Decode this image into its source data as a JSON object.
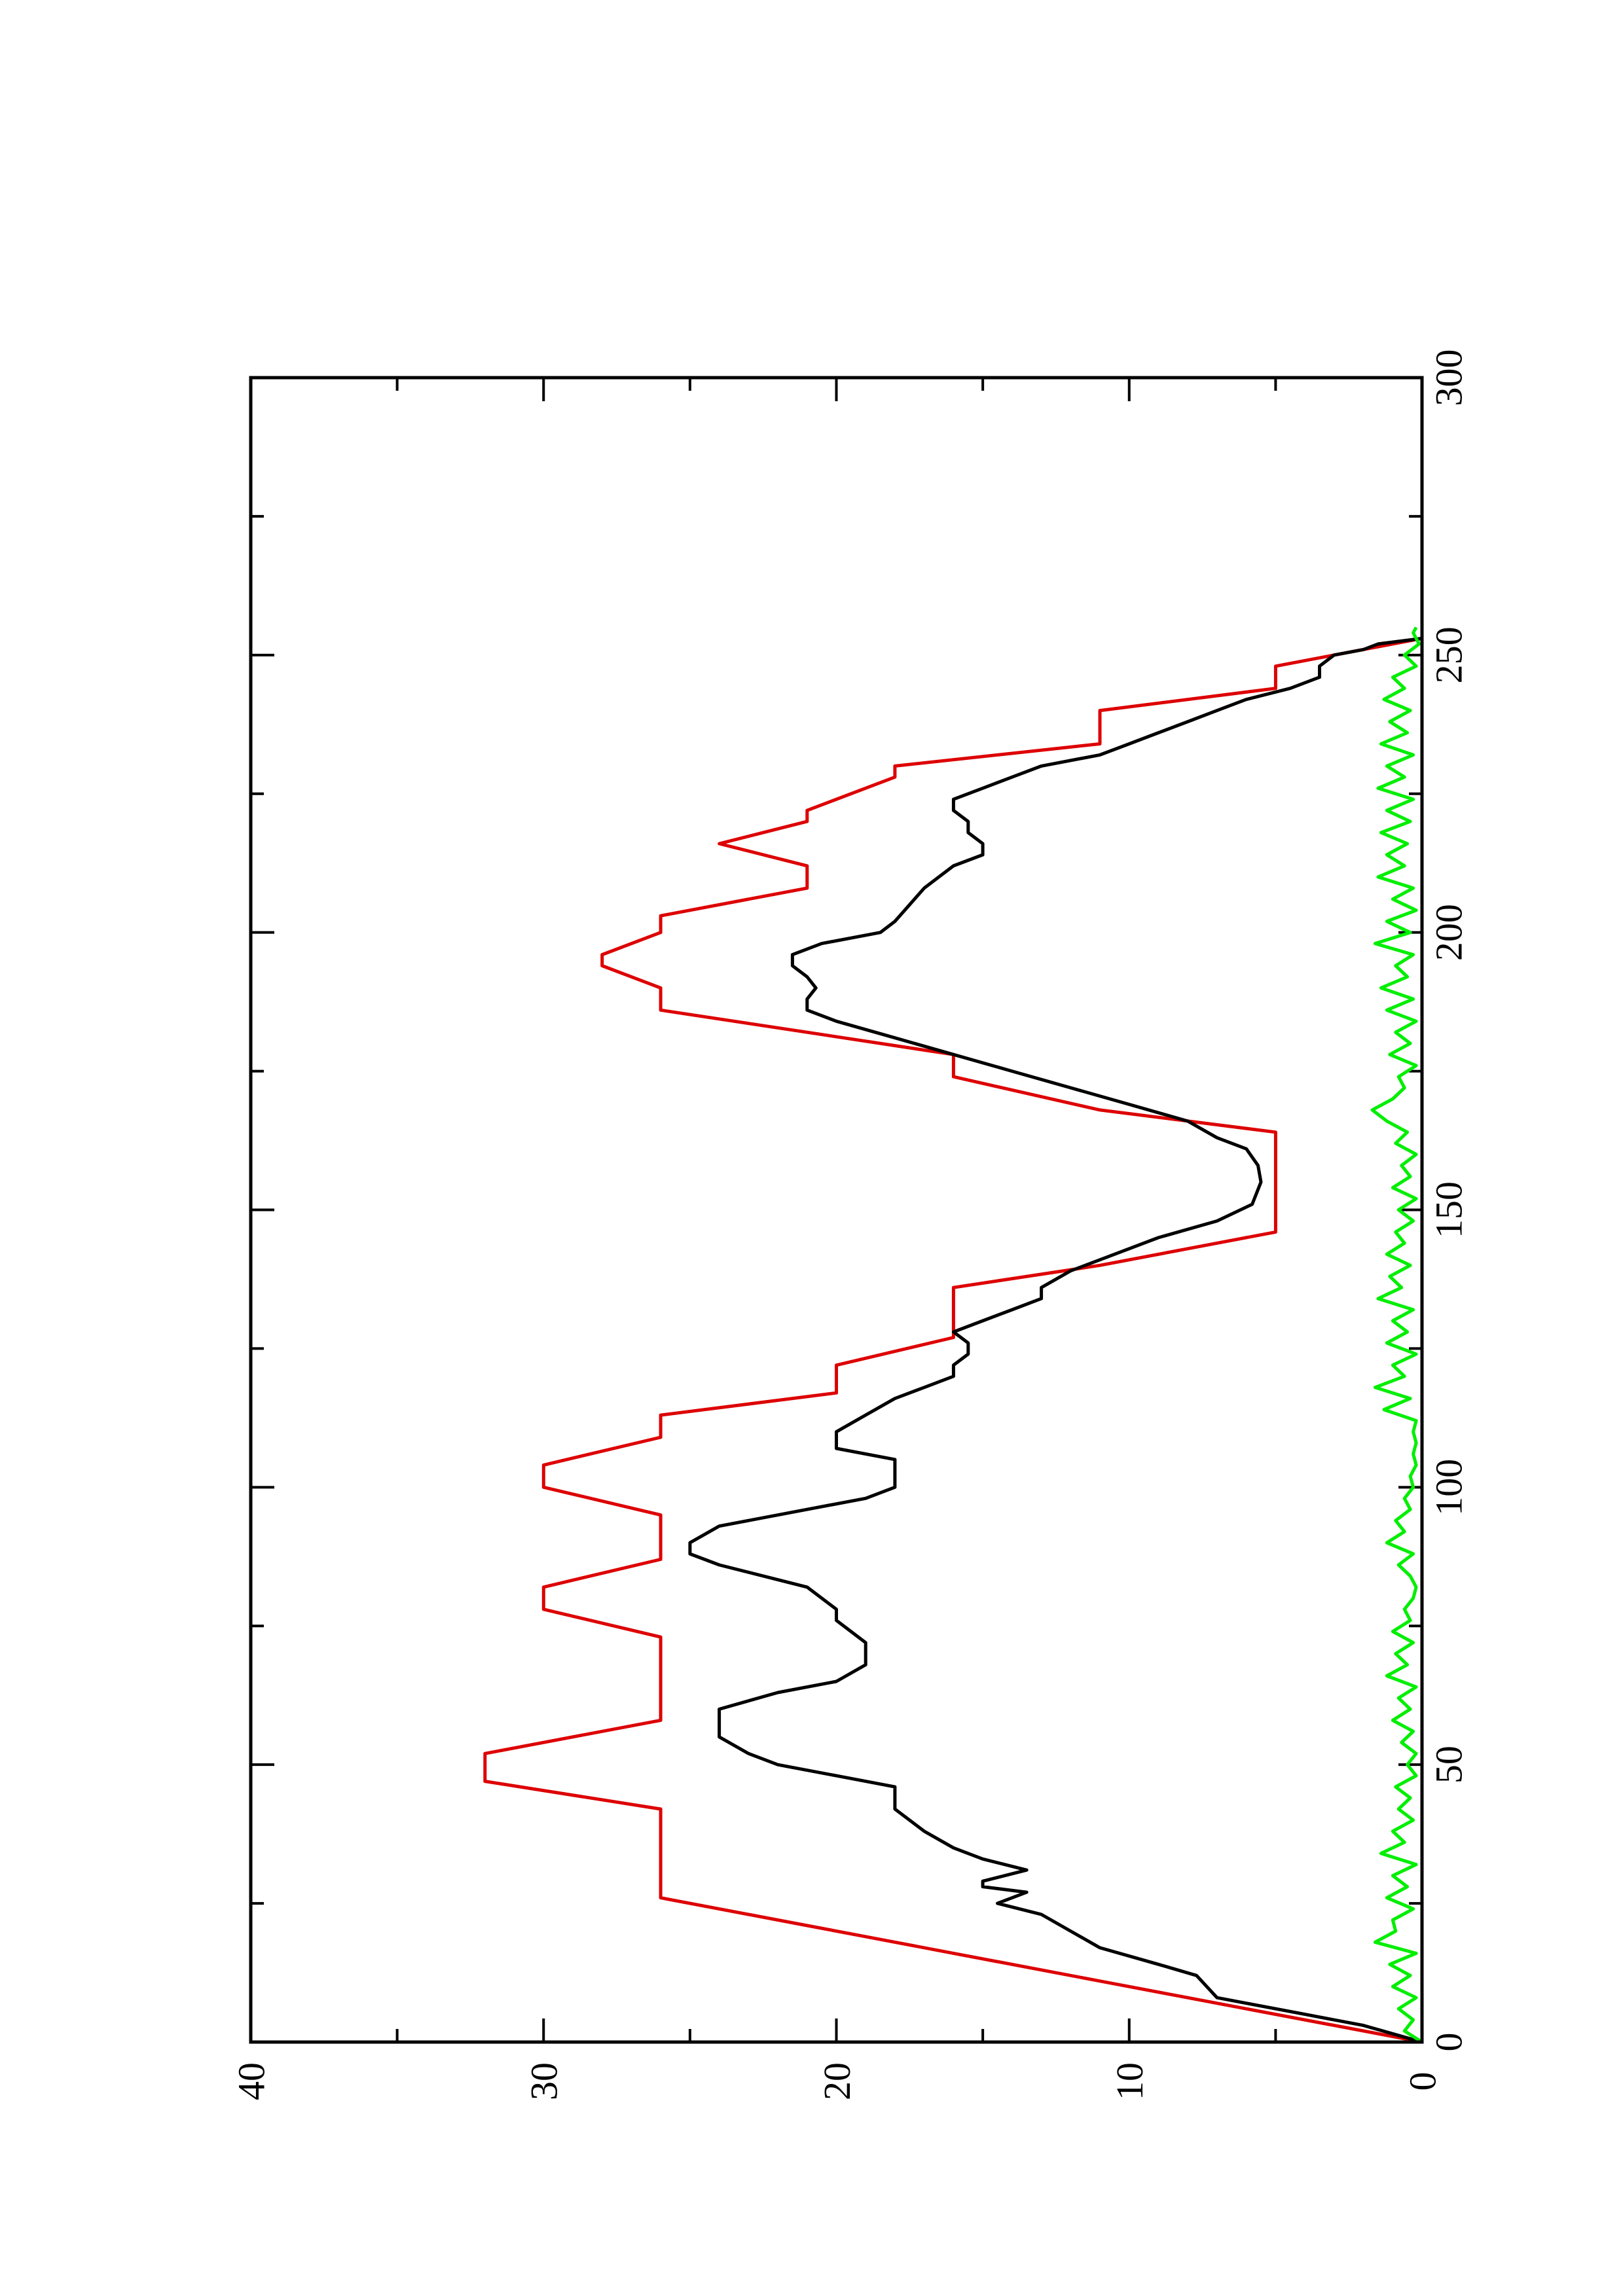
{
  "chart_data": {
    "type": "line",
    "title": "",
    "xlabel": "",
    "ylabel": "",
    "orientation": "rotated-90-ccw",
    "xlim": [
      0,
      300
    ],
    "ylim": [
      0,
      40
    ],
    "x_ticks": [
      0,
      50,
      100,
      150,
      200,
      250,
      300
    ],
    "x_minor_ticks": [
      25,
      75,
      125,
      175,
      225,
      275
    ],
    "y_ticks": [
      0,
      10,
      20,
      30,
      40
    ],
    "y_minor_ticks": [
      5,
      15,
      25,
      35
    ],
    "grid": false,
    "legend": "none",
    "series": [
      {
        "color": "#dd0000",
        "points": [
          [
            0,
            0
          ],
          [
            11,
            11
          ],
          [
            16,
            16
          ],
          [
            19,
            19
          ],
          [
            21,
            21
          ],
          [
            26,
            26
          ],
          [
            42,
            26
          ],
          [
            47,
            32
          ],
          [
            52,
            32
          ],
          [
            58,
            26
          ],
          [
            73,
            26
          ],
          [
            78,
            30
          ],
          [
            82,
            30
          ],
          [
            87,
            26
          ],
          [
            95,
            26
          ],
          [
            100,
            30
          ],
          [
            104,
            30
          ],
          [
            109,
            26
          ],
          [
            113,
            26
          ],
          [
            117,
            20
          ],
          [
            122,
            20
          ],
          [
            127,
            16
          ],
          [
            136,
            16
          ],
          [
            140,
            11
          ],
          [
            146,
            5
          ],
          [
            164,
            5
          ],
          [
            168,
            11
          ],
          [
            174,
            16
          ],
          [
            178,
            16
          ],
          [
            182,
            21
          ],
          [
            186,
            26
          ],
          [
            190,
            26
          ],
          [
            194,
            28
          ],
          [
            196,
            28
          ],
          [
            200,
            26
          ],
          [
            203,
            26
          ],
          [
            208,
            21
          ],
          [
            212,
            21
          ],
          [
            216,
            24
          ],
          [
            220,
            21
          ],
          [
            222,
            21
          ],
          [
            228,
            18
          ],
          [
            230,
            18
          ],
          [
            234,
            11
          ],
          [
            240,
            11
          ],
          [
            244,
            5
          ],
          [
            248,
            5
          ],
          [
            253,
            0
          ]
        ]
      },
      {
        "color": "#000000",
        "points": [
          [
            0,
            0
          ],
          [
            3,
            2
          ],
          [
            5,
            4
          ],
          [
            8,
            7
          ],
          [
            12,
            7.7
          ],
          [
            14,
            9
          ],
          [
            17,
            11
          ],
          [
            20,
            12
          ],
          [
            23,
            13
          ],
          [
            25,
            14.5
          ],
          [
            27,
            13.5
          ],
          [
            28,
            15
          ],
          [
            29,
            15
          ],
          [
            31,
            13.5
          ],
          [
            33,
            15
          ],
          [
            35,
            16
          ],
          [
            38,
            17
          ],
          [
            42,
            18
          ],
          [
            46,
            18
          ],
          [
            48,
            20
          ],
          [
            50,
            22
          ],
          [
            52,
            23
          ],
          [
            55,
            24
          ],
          [
            60,
            24
          ],
          [
            63,
            22
          ],
          [
            65,
            20
          ],
          [
            68,
            19
          ],
          [
            72,
            19
          ],
          [
            76,
            20
          ],
          [
            78,
            20
          ],
          [
            82,
            21
          ],
          [
            86,
            24
          ],
          [
            88,
            25
          ],
          [
            90,
            25
          ],
          [
            93,
            24
          ],
          [
            96,
            21
          ],
          [
            98,
            19
          ],
          [
            100,
            18
          ],
          [
            103,
            18
          ],
          [
            105,
            18
          ],
          [
            107,
            20
          ],
          [
            110,
            20
          ],
          [
            113,
            19
          ],
          [
            116,
            18
          ],
          [
            118,
            17
          ],
          [
            120,
            16
          ],
          [
            122,
            16
          ],
          [
            124,
            15.5
          ],
          [
            126,
            15.5
          ],
          [
            128,
            16
          ],
          [
            130,
            15
          ],
          [
            132,
            14
          ],
          [
            134,
            13
          ],
          [
            136,
            13
          ],
          [
            139,
            12
          ],
          [
            141,
            11
          ],
          [
            145,
            9
          ],
          [
            148,
            7
          ],
          [
            151,
            5.8
          ],
          [
            155,
            5.5
          ],
          [
            158,
            5.6
          ],
          [
            161,
            6
          ],
          [
            163,
            7
          ],
          [
            166,
            8
          ],
          [
            169,
            10
          ],
          [
            172,
            12
          ],
          [
            175,
            14
          ],
          [
            178,
            16
          ],
          [
            181,
            18
          ],
          [
            184,
            20
          ],
          [
            186,
            21
          ],
          [
            188,
            21
          ],
          [
            190,
            20.7
          ],
          [
            192,
            21
          ],
          [
            194,
            21.5
          ],
          [
            196,
            21.5
          ],
          [
            198,
            20.5
          ],
          [
            200,
            18.5
          ],
          [
            202,
            18
          ],
          [
            205,
            17.5
          ],
          [
            208,
            17
          ],
          [
            210,
            16.5
          ],
          [
            212,
            16
          ],
          [
            214,
            15
          ],
          [
            216,
            15
          ],
          [
            218,
            15.5
          ],
          [
            220,
            15.5
          ],
          [
            222,
            16
          ],
          [
            224,
            16
          ],
          [
            226,
            15
          ],
          [
            228,
            14
          ],
          [
            230,
            13
          ],
          [
            232,
            11
          ],
          [
            234,
            10
          ],
          [
            236,
            9
          ],
          [
            238,
            8
          ],
          [
            240,
            7
          ],
          [
            242,
            6
          ],
          [
            244,
            4.5
          ],
          [
            246,
            3.5
          ],
          [
            248,
            3.5
          ],
          [
            250,
            3
          ],
          [
            251,
            2
          ],
          [
            252,
            1.5
          ],
          [
            253,
            0
          ]
        ]
      },
      {
        "color": "#00ee00",
        "points": [
          [
            0,
            0
          ],
          [
            2,
            0.6
          ],
          [
            4,
            0.3
          ],
          [
            6,
            0.8
          ],
          [
            8,
            0.2
          ],
          [
            10,
            1.0
          ],
          [
            12,
            0.4
          ],
          [
            14,
            1.1
          ],
          [
            16,
            0.2
          ],
          [
            18,
            1.6
          ],
          [
            20,
            0.9
          ],
          [
            22,
            1.0
          ],
          [
            24,
            0.3
          ],
          [
            26,
            1.2
          ],
          [
            28,
            0.5
          ],
          [
            30,
            1.0
          ],
          [
            32,
            0.2
          ],
          [
            34,
            1.4
          ],
          [
            36,
            0.6
          ],
          [
            38,
            1.0
          ],
          [
            40,
            0.3
          ],
          [
            42,
            0.8
          ],
          [
            44,
            0.4
          ],
          [
            46,
            0.9
          ],
          [
            48,
            0.2
          ],
          [
            50,
            0.5
          ],
          [
            52,
            0.2
          ],
          [
            54,
            0.7
          ],
          [
            56,
            0.3
          ],
          [
            58,
            1.0
          ],
          [
            60,
            0.4
          ],
          [
            62,
            0.8
          ],
          [
            64,
            0.2
          ],
          [
            66,
            1.2
          ],
          [
            68,
            0.5
          ],
          [
            70,
            0.9
          ],
          [
            72,
            0.3
          ],
          [
            74,
            1.0
          ],
          [
            76,
            0.4
          ],
          [
            78,
            0.6
          ],
          [
            80,
            0.3
          ],
          [
            82,
            0.2
          ],
          [
            84,
            0.4
          ],
          [
            86,
            0.8
          ],
          [
            88,
            0.3
          ],
          [
            90,
            1.2
          ],
          [
            92,
            0.6
          ],
          [
            94,
            0.9
          ],
          [
            96,
            0.4
          ],
          [
            98,
            0.6
          ],
          [
            100,
            0.3
          ],
          [
            102,
            0.4
          ],
          [
            104,
            0.2
          ],
          [
            106,
            0.3
          ],
          [
            108,
            0.2
          ],
          [
            110,
            0.3
          ],
          [
            112,
            0.2
          ],
          [
            114,
            1.3
          ],
          [
            116,
            0.4
          ],
          [
            118,
            1.6
          ],
          [
            120,
            0.6
          ],
          [
            122,
            1.0
          ],
          [
            124,
            0.2
          ],
          [
            126,
            1.2
          ],
          [
            128,
            0.5
          ],
          [
            130,
            1.0
          ],
          [
            132,
            0.3
          ],
          [
            134,
            1.5
          ],
          [
            136,
            0.7
          ],
          [
            138,
            1.1
          ],
          [
            140,
            0.4
          ],
          [
            142,
            1.2
          ],
          [
            144,
            0.6
          ],
          [
            146,
            0.9
          ],
          [
            148,
            0.3
          ],
          [
            150,
            0.8
          ],
          [
            152,
            0.2
          ],
          [
            154,
            1.0
          ],
          [
            156,
            0.4
          ],
          [
            158,
            0.7
          ],
          [
            160,
            0.2
          ],
          [
            162,
            0.9
          ],
          [
            164,
            0.5
          ],
          [
            166,
            1.2
          ],
          [
            168,
            1.7
          ],
          [
            170,
            1.0
          ],
          [
            172,
            0.6
          ],
          [
            174,
            0.8
          ],
          [
            176,
            0.2
          ],
          [
            178,
            1.1
          ],
          [
            180,
            0.4
          ],
          [
            182,
            0.9
          ],
          [
            184,
            0.2
          ],
          [
            186,
            1.2
          ],
          [
            188,
            0.3
          ],
          [
            190,
            1.4
          ],
          [
            192,
            0.5
          ],
          [
            194,
            0.9
          ],
          [
            196,
            0.3
          ],
          [
            198,
            1.6
          ],
          [
            200,
            0.4
          ],
          [
            202,
            1.2
          ],
          [
            204,
            0.2
          ],
          [
            206,
            1.0
          ],
          [
            208,
            0.3
          ],
          [
            210,
            1.5
          ],
          [
            212,
            0.6
          ],
          [
            214,
            1.2
          ],
          [
            216,
            0.5
          ],
          [
            218,
            1.4
          ],
          [
            220,
            0.4
          ],
          [
            222,
            1.2
          ],
          [
            224,
            0.3
          ],
          [
            226,
            1.5
          ],
          [
            228,
            0.6
          ],
          [
            230,
            1.2
          ],
          [
            232,
            0.3
          ],
          [
            234,
            1.4
          ],
          [
            236,
            0.5
          ],
          [
            238,
            1.1
          ],
          [
            240,
            0.4
          ],
          [
            242,
            1.3
          ],
          [
            244,
            0.6
          ],
          [
            246,
            1.0
          ],
          [
            248,
            0.2
          ],
          [
            250,
            0.6
          ],
          [
            252,
            0.1
          ],
          [
            254,
            0.3
          ],
          [
            255,
            0.2
          ]
        ]
      }
    ]
  }
}
